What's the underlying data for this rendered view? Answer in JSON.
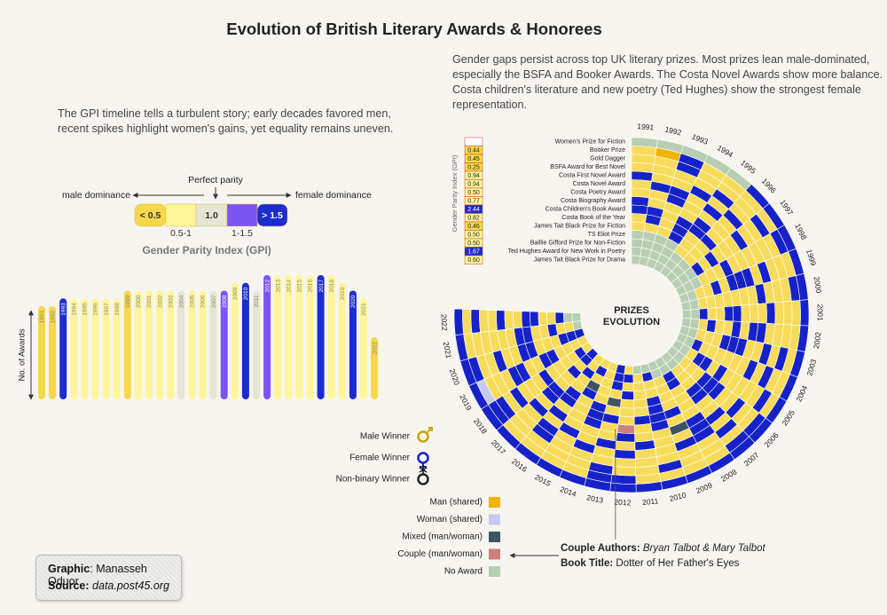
{
  "title": "Evolution of British Literary Awards & Honorees",
  "intro_right": "Gender gaps persist across top UK literary prizes. Most prizes lean male-dominated, especially the BSFA and Booker Awards. The Costa Novel Awards show more balance. Costa children's literature and new poetry (Ted Hughes) show the strongest female representation.",
  "intro_left": "The GPI timeline tells a turbulent story; early decades favored men, recent spikes highlight women's gains, yet equality remains uneven.",
  "gpi_legend": {
    "title": "Gender Parity Index (GPI)",
    "center": "Perfect parity",
    "left": "male dominance",
    "right": "female dominance",
    "scale": [
      {
        "label": "< 0.5",
        "color": "#f6d84a",
        "range": [
          null,
          0.5
        ]
      },
      {
        "label": "0.5-1",
        "color": "#fff59a",
        "range": [
          0.5,
          1
        ]
      },
      {
        "label": "1.0",
        "color": "#e6e6d4",
        "range": [
          1,
          1
        ]
      },
      {
        "label": "1-1.5",
        "color": "#7b55f2",
        "range": [
          1,
          1.5
        ]
      },
      {
        "label": "> 1.5",
        "color": "#1c2ccf",
        "range": [
          1.5,
          null
        ]
      }
    ]
  },
  "chart_data": [
    {
      "type": "bar",
      "ylabel": "No. of Awards",
      "categories": [
        1991,
        1992,
        1993,
        1994,
        1995,
        1996,
        1997,
        1998,
        1999,
        2000,
        2001,
        2002,
        2003,
        2004,
        2005,
        2006,
        2007,
        2008,
        2009,
        2010,
        2011,
        2012,
        2013,
        2014,
        2015,
        2016,
        2017,
        2018,
        2019,
        2020,
        2021,
        2022
      ],
      "values": [
        12,
        12,
        13,
        13,
        13,
        13,
        13,
        13,
        14,
        14,
        14,
        14,
        14,
        14,
        14,
        14,
        14,
        14,
        15,
        15,
        14,
        16,
        16,
        16,
        16,
        16,
        16,
        16,
        15,
        14,
        13,
        8
      ],
      "gpi": [
        0.4,
        0.45,
        2.0,
        0.8,
        0.7,
        0.6,
        0.7,
        0.6,
        0.45,
        0.8,
        0.7,
        0.8,
        0.9,
        1.0,
        0.9,
        0.8,
        1.0,
        1.4,
        0.6,
        1.8,
        1.0,
        1.3,
        0.7,
        0.9,
        0.8,
        0.9,
        1.75,
        0.9,
        0.7,
        2.0,
        0.8,
        0.45
      ],
      "ylim": [
        0,
        16
      ]
    },
    {
      "type": "radial_heatmap",
      "center_label": [
        "PRIZES",
        "EVOLUTION"
      ],
      "years": [
        1991,
        1992,
        1993,
        1994,
        1995,
        1996,
        1997,
        1998,
        1999,
        2000,
        2001,
        2002,
        2003,
        2004,
        2005,
        2006,
        2007,
        2008,
        2009,
        2010,
        2011,
        2012,
        2013,
        2014,
        2015,
        2016,
        2017,
        2018,
        2019,
        2020,
        2021,
        2022
      ],
      "rows": [
        "Women's Prize for Fiction",
        "Booker Prize",
        "Gold Dagger",
        "BSFA Award for Best Novel",
        "Costa First Novel Award",
        "Costa Novel Award",
        "Costa Poetry Award",
        "Costa Biography Award",
        "Costa Children's Book Award",
        "Costa Book of the Year",
        "James Tait Black Prize for Fiction",
        "TS Eliot Prize",
        "Baillie Gifford Prize for Non-Fiction",
        "Ted Hughes Award for New Work in Poetry",
        "James Tait Black Prize for Drama"
      ],
      "gpi": [
        null,
        0.44,
        0.45,
        0.25,
        0.94,
        0.94,
        0.5,
        0.77,
        2.44,
        0.82,
        0.46,
        0.5,
        0.5,
        1.67,
        0.6
      ],
      "gpi_labels": [
        null,
        "0.44",
        "0.45",
        "0.25",
        "0.94",
        "0.94",
        "0.50",
        "0.77",
        "2.44",
        "0.82",
        "0.46",
        "0.50",
        "0.50",
        "1.67",
        "0.60"
      ],
      "categories": [
        {
          "label": "Male Winner",
          "color": "#f7dc5c"
        },
        {
          "label": "Female Winner",
          "color": "#1622c8"
        },
        {
          "label": "Non-binary Winner",
          "color": "#222222"
        },
        {
          "label": "Man (shared)",
          "color": "#f0b400"
        },
        {
          "label": "Woman (shared)",
          "color": "#c5cbf0"
        },
        {
          "label": "Mixed (man/woman)",
          "color": "#3f5463"
        },
        {
          "label": "Couple (man/woman)",
          "color": "#cf7f7f"
        },
        {
          "label": "No Award",
          "color": "#b8ceb2"
        }
      ],
      "cells": [
        [
          7,
          7,
          7,
          7,
          7,
          1,
          1,
          1,
          1,
          1,
          1,
          1,
          1,
          1,
          1,
          1,
          1,
          1,
          1,
          1,
          1,
          1,
          1,
          1,
          1,
          1,
          1,
          1,
          1,
          1,
          1,
          1
        ],
        [
          0,
          3,
          1,
          0,
          0,
          0,
          0,
          1,
          0,
          1,
          0,
          0,
          0,
          0,
          0,
          1,
          1,
          0,
          0,
          0,
          0,
          1,
          1,
          0,
          0,
          0,
          0,
          1,
          4,
          1,
          0,
          0
        ],
        [
          0,
          0,
          1,
          0,
          0,
          0,
          1,
          0,
          0,
          0,
          0,
          0,
          1,
          0,
          1,
          0,
          0,
          0,
          0,
          1,
          0,
          0,
          1,
          0,
          0,
          0,
          0,
          1,
          0,
          0,
          0,
          1
        ],
        [
          0,
          0,
          0,
          0,
          1,
          0,
          0,
          0,
          0,
          0,
          0,
          0,
          0,
          1,
          0,
          0,
          1,
          0,
          0,
          0,
          0,
          0,
          0,
          0,
          0,
          1,
          0,
          0,
          0,
          0,
          0,
          0
        ],
        [
          1,
          0,
          0,
          1,
          0,
          1,
          0,
          0,
          1,
          0,
          1,
          0,
          1,
          0,
          0,
          1,
          0,
          1,
          1,
          0,
          0,
          1,
          0,
          1,
          0,
          1,
          0,
          1,
          0,
          1,
          0,
          0
        ],
        [
          0,
          1,
          1,
          0,
          1,
          0,
          1,
          0,
          0,
          1,
          0,
          1,
          0,
          1,
          0,
          0,
          1,
          1,
          0,
          0,
          1,
          0,
          1,
          0,
          1,
          0,
          1,
          0,
          1,
          0,
          0,
          1
        ],
        [
          0,
          0,
          1,
          0,
          0,
          0,
          0,
          0,
          1,
          0,
          0,
          1,
          0,
          0,
          0,
          0,
          0,
          1,
          5,
          0,
          0,
          1,
          0,
          0,
          0,
          1,
          0,
          0,
          1,
          0,
          0,
          0
        ],
        [
          1,
          0,
          0,
          0,
          1,
          0,
          0,
          0,
          1,
          0,
          0,
          0,
          1,
          0,
          0,
          1,
          0,
          0,
          0,
          1,
          0,
          6,
          0,
          1,
          0,
          0,
          1,
          0,
          0,
          1,
          1,
          0
        ],
        [
          1,
          1,
          0,
          1,
          1,
          1,
          0,
          1,
          1,
          0,
          1,
          1,
          1,
          0,
          1,
          1,
          1,
          0,
          1,
          1,
          1,
          0,
          1,
          1,
          0,
          1,
          1,
          1,
          0,
          1,
          1,
          1
        ],
        [
          0,
          1,
          0,
          1,
          0,
          0,
          1,
          0,
          0,
          0,
          1,
          0,
          1,
          0,
          0,
          1,
          1,
          0,
          0,
          1,
          0,
          0,
          0,
          1,
          0,
          1,
          0,
          0,
          1,
          0,
          0,
          1
        ],
        [
          0,
          0,
          0,
          1,
          0,
          0,
          0,
          0,
          1,
          0,
          0,
          0,
          0,
          0,
          1,
          0,
          0,
          0,
          0,
          1,
          0,
          0,
          5,
          0,
          1,
          0,
          0,
          0,
          1,
          0,
          0,
          0
        ],
        [
          7,
          7,
          7,
          7,
          0,
          0,
          1,
          0,
          0,
          0,
          0,
          1,
          0,
          0,
          1,
          0,
          0,
          1,
          0,
          0,
          0,
          1,
          0,
          0,
          5,
          0,
          1,
          0,
          0,
          0,
          1,
          0
        ],
        [
          7,
          7,
          7,
          7,
          7,
          7,
          7,
          7,
          0,
          0,
          1,
          0,
          0,
          1,
          0,
          0,
          0,
          1,
          0,
          0,
          0,
          0,
          1,
          0,
          0,
          1,
          0,
          0,
          0,
          1,
          0,
          1
        ],
        [
          7,
          7,
          7,
          7,
          7,
          7,
          7,
          7,
          7,
          7,
          7,
          7,
          7,
          7,
          7,
          7,
          7,
          7,
          7,
          1,
          0,
          1,
          1,
          0,
          1,
          0,
          1,
          1,
          0,
          1,
          0,
          7
        ],
        [
          7,
          7,
          7,
          7,
          7,
          7,
          7,
          7,
          7,
          7,
          7,
          7,
          7,
          7,
          7,
          7,
          7,
          7,
          7,
          7,
          7,
          0,
          1,
          0,
          0,
          0,
          1,
          0,
          0,
          1,
          7,
          7
        ]
      ]
    }
  ],
  "annotation": {
    "authors_label": "Couple Authors:",
    "authors": "Bryan Talbot & Mary Talbot",
    "book_label": "Book Title:",
    "book": "Dotter of Her Father's Eyes"
  },
  "credits": {
    "graphic_label": "Graphic",
    "graphic": ": Manasseh Oduor",
    "source_label": "Source",
    "source": "data.post45.org"
  }
}
